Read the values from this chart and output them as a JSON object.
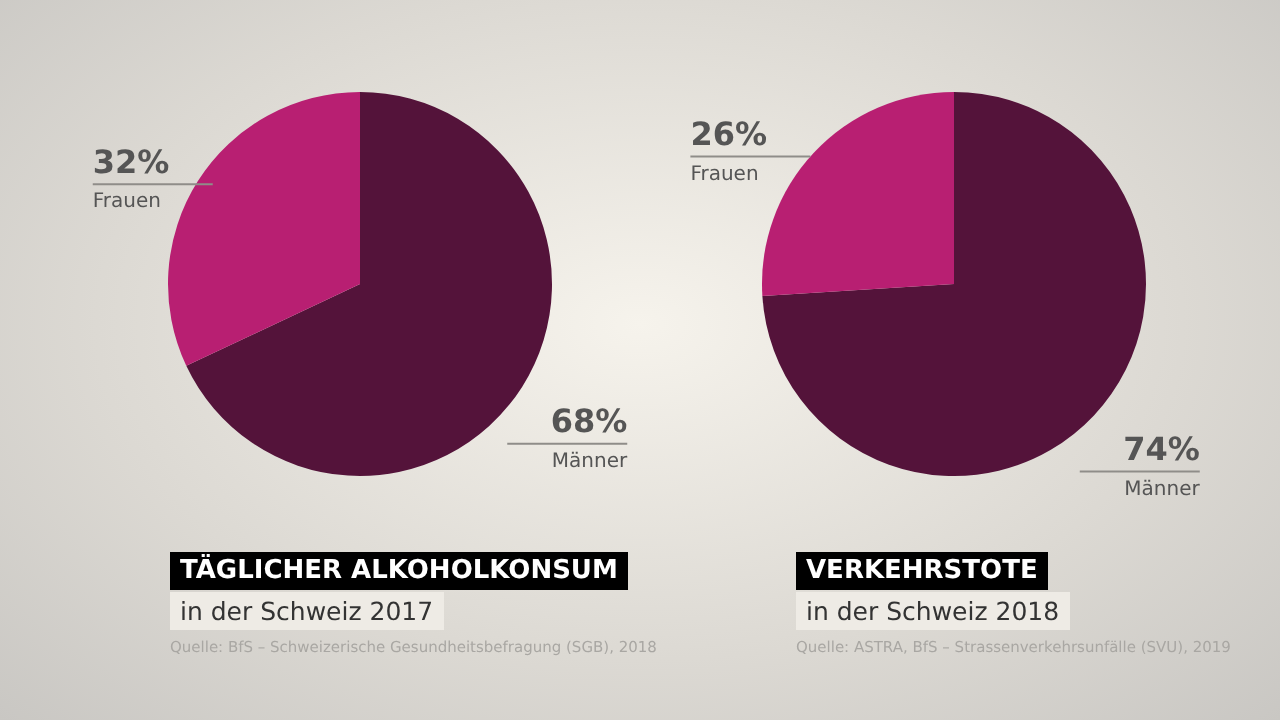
{
  "chart_data": [
    {
      "type": "pie",
      "title": "TÄGLICHER ALKOHOLKONSUM",
      "subtitle": "in der Schweiz 2017",
      "categories": [
        "Männer",
        "Frauen"
      ],
      "values": [
        68,
        32
      ],
      "colors": [
        "#54133a",
        "#b81f72"
      ],
      "value_labels": [
        "68%",
        "32%"
      ],
      "annotations": [
        "Quelle: BfS – Schweizerische Gesundheitsbefragung (SGB), 2018"
      ]
    },
    {
      "type": "pie",
      "title": "VERKEHRSTOTE",
      "subtitle": "in der Schweiz 2018",
      "categories": [
        "Männer",
        "Frauen"
      ],
      "values": [
        74,
        26
      ],
      "colors": [
        "#54133a",
        "#b81f72"
      ],
      "value_labels": [
        "74%",
        "26%"
      ],
      "annotations": [
        "Quelle: ASTRA, BfS – Strassenverkehrsunfälle (SVU), 2019"
      ]
    }
  ]
}
